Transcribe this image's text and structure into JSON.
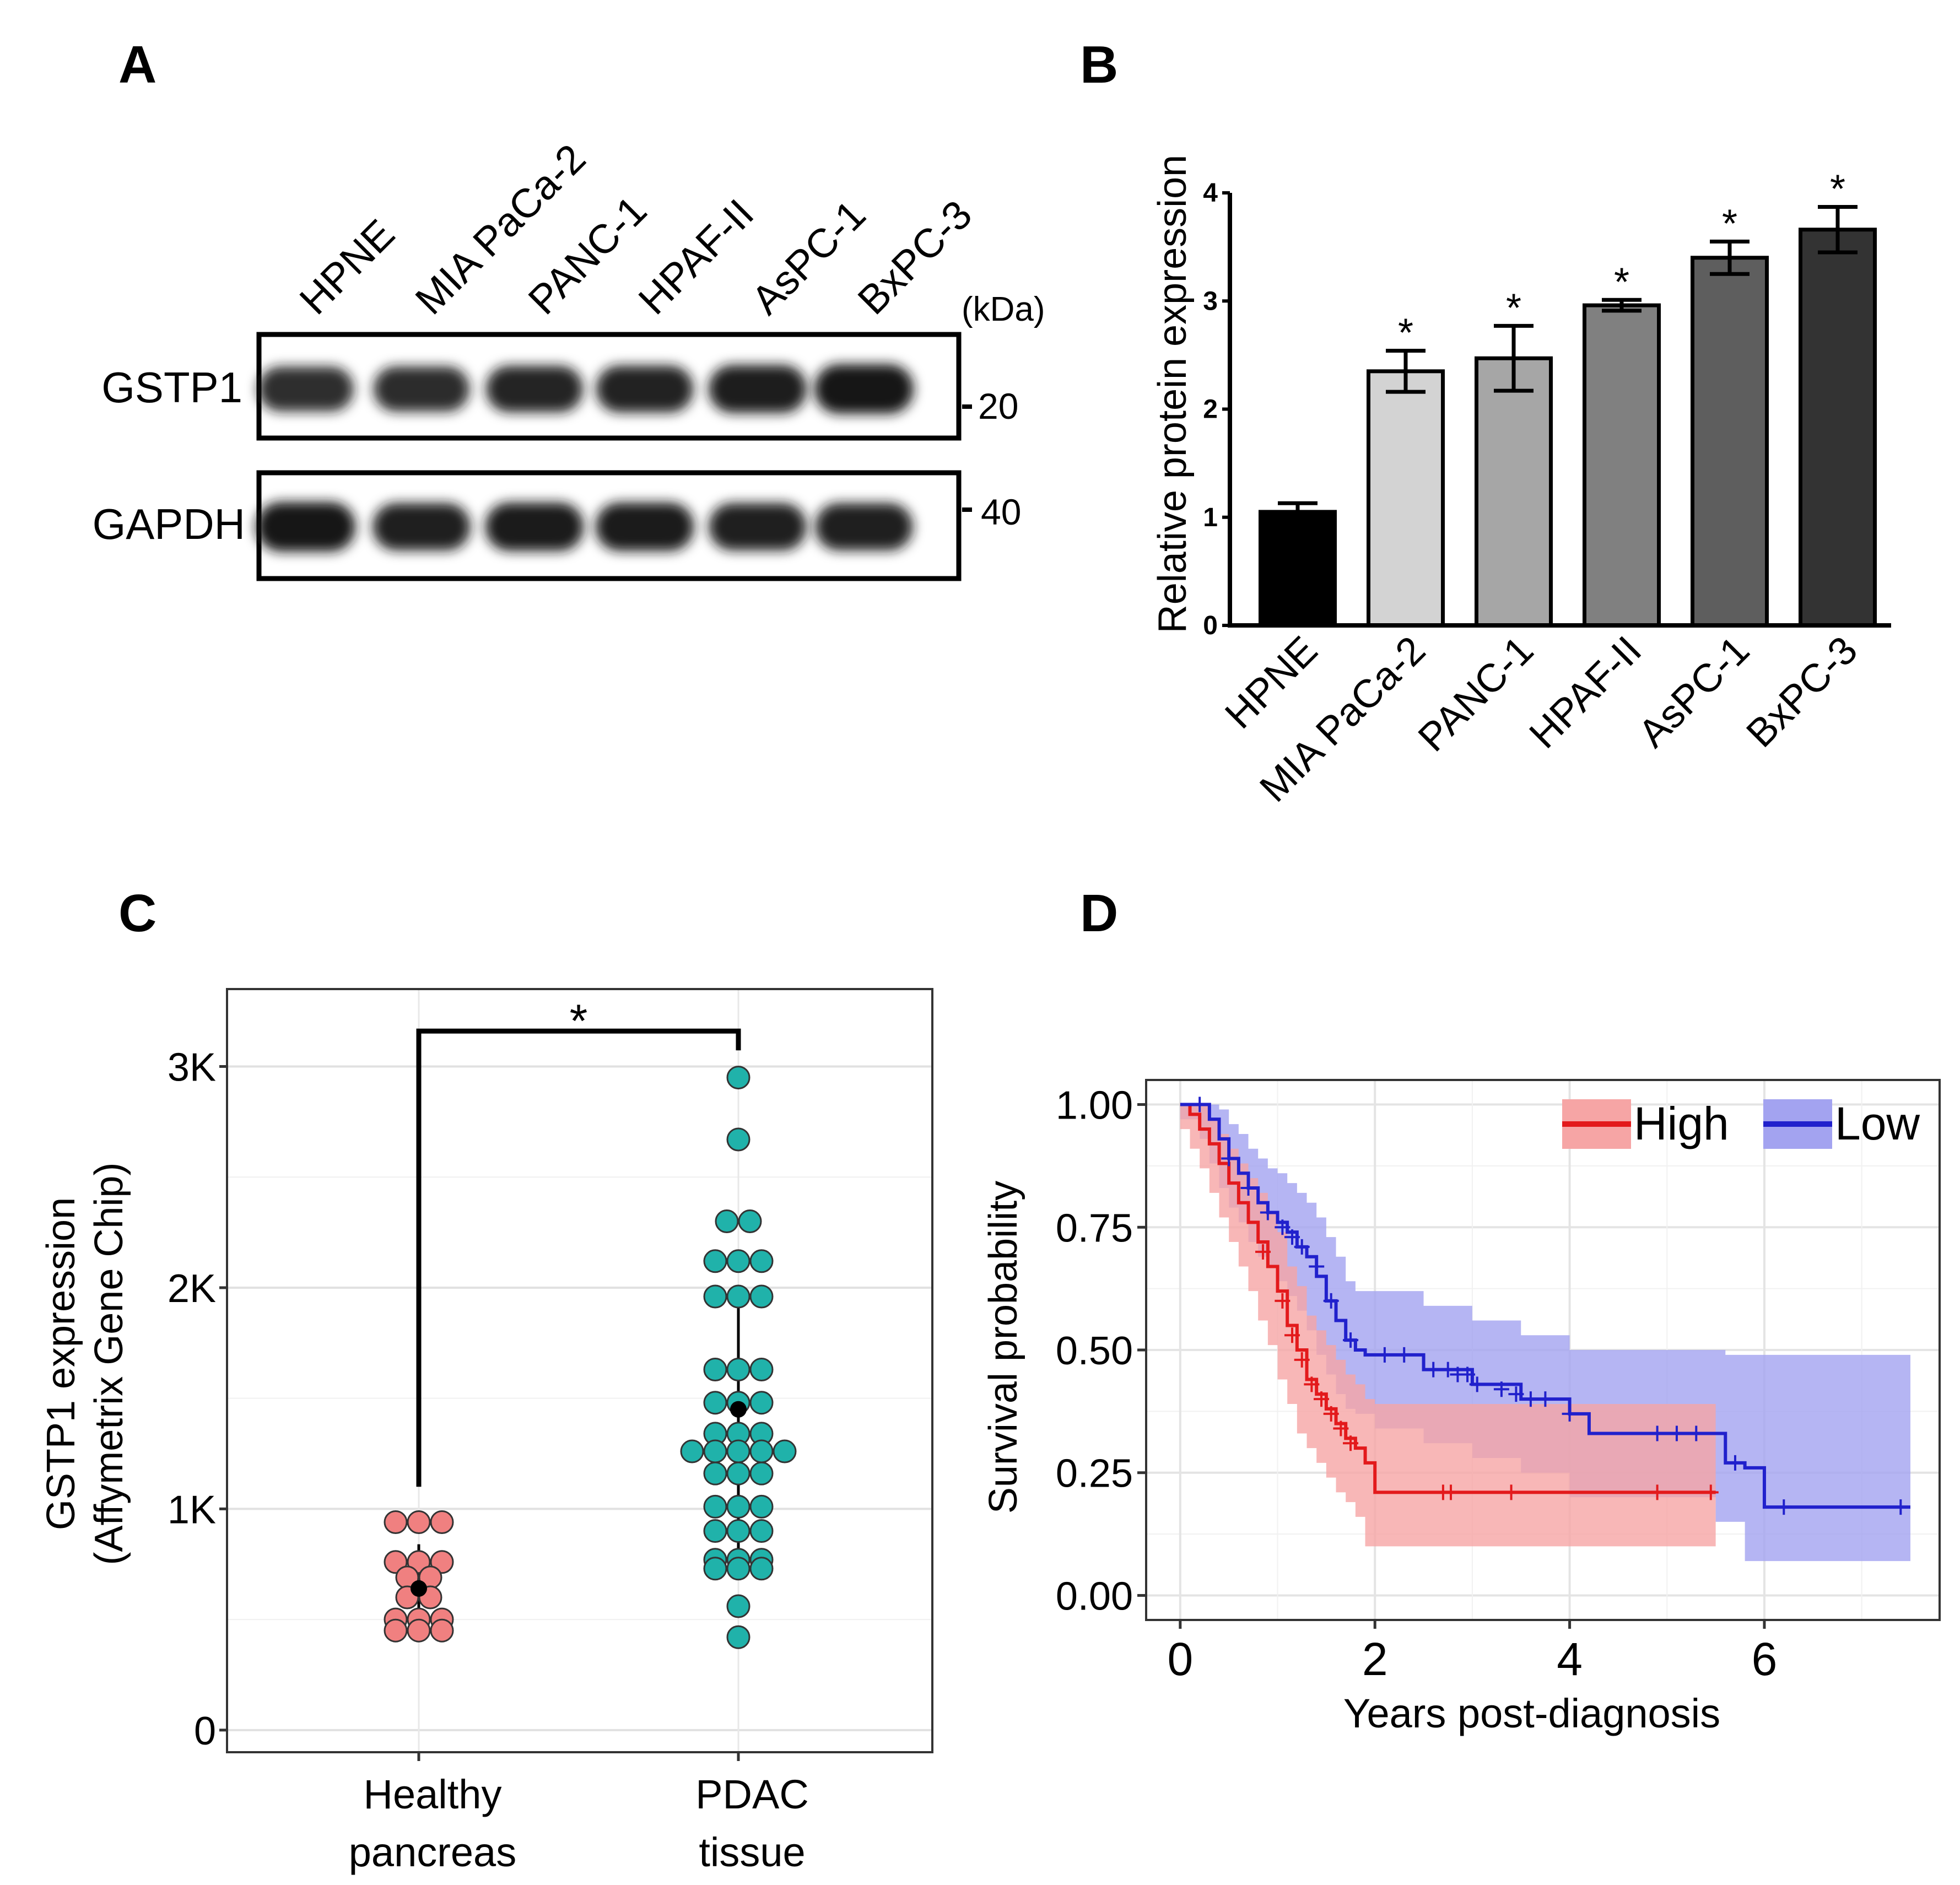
{
  "panels": {
    "a": "A",
    "b": "B",
    "c": "C",
    "d": "D"
  },
  "western_blot": {
    "lanes": [
      "HPNE",
      "MIA PaCa-2",
      "PANC-1",
      "HPAF-II",
      "AsPC-1",
      "BxPC-3"
    ],
    "unit_label": "(kDa)",
    "rows": [
      {
        "label": "GSTP1",
        "marker": "20",
        "band_intensity": [
          0.78,
          0.8,
          0.86,
          0.88,
          0.93,
          1.0
        ]
      },
      {
        "label": "GAPDH",
        "marker": "40",
        "band_intensity": [
          1.0,
          0.9,
          0.95,
          0.95,
          0.9,
          0.9
        ]
      }
    ]
  },
  "colors": {
    "bars_b": [
      "#000000",
      "#d3d3d3",
      "#a6a6a6",
      "#808080",
      "#5e5e5e",
      "#333333"
    ],
    "healthy": "#f08080",
    "pdac": "#20b2aa",
    "high": "#e31a1c",
    "high_fill": "#f6a5a5",
    "low": "#2121cc",
    "low_fill": "#a3a3f0"
  },
  "chart_data": [
    {
      "id": "B",
      "type": "bar",
      "categories": [
        "HPNE",
        "MIA PaCa-2",
        "PANC-1",
        "HPAF-II",
        "AsPC-1",
        "BxPC-3"
      ],
      "values": [
        1.05,
        2.35,
        2.47,
        2.96,
        3.4,
        3.66
      ],
      "errors": [
        0.08,
        0.19,
        0.3,
        0.05,
        0.15,
        0.21
      ],
      "significance": [
        "",
        "*",
        "*",
        "*",
        "*",
        "*"
      ],
      "ylabel": "Relative protein expression",
      "ylim": [
        0,
        4
      ],
      "yticks": [
        "0",
        "1",
        "2",
        "3",
        "4"
      ]
    },
    {
      "id": "C",
      "type": "scatter",
      "categories": [
        "Healthy pancreas",
        "PDAC tissue"
      ],
      "category_lines": [
        [
          "Healthy",
          "pancreas"
        ],
        [
          "PDAC",
          "tissue"
        ]
      ],
      "ylabel_lines": [
        "GSTP1 expression",
        "(Affymetrix Gene Chip)"
      ],
      "ylim": [
        -100,
        3350
      ],
      "yticks": [
        "0",
        "1K",
        "2K",
        "3K"
      ],
      "series": [
        {
          "name": "Healthy pancreas",
          "rows": [
            [
              940,
              3
            ],
            [
              760,
              3
            ],
            [
              690,
              2
            ],
            [
              600,
              2
            ],
            [
              500,
              3
            ],
            [
              450,
              3
            ]
          ],
          "mean": 640,
          "sd_low": 440,
          "sd_high": 840
        },
        {
          "name": "PDAC tissue",
          "rows": [
            [
              2950,
              1
            ],
            [
              2670,
              1
            ],
            [
              2300,
              2
            ],
            [
              2120,
              3
            ],
            [
              1960,
              3
            ],
            [
              1630,
              3
            ],
            [
              1480,
              3
            ],
            [
              1340,
              3
            ],
            [
              1260,
              5
            ],
            [
              1160,
              3
            ],
            [
              1010,
              3
            ],
            [
              900,
              3
            ],
            [
              770,
              3
            ],
            [
              730,
              3
            ],
            [
              560,
              1
            ],
            [
              420,
              1
            ]
          ],
          "mean": 1450,
          "sd_low": 750,
          "sd_high": 2010
        }
      ],
      "significance_label": "*",
      "bracket_y": [
        1100,
        3160
      ]
    },
    {
      "id": "D",
      "type": "line",
      "xlabel": "Years post-diagnosis",
      "ylabel": "Survival probability",
      "xlim": [
        -0.35,
        7.8
      ],
      "ylim": [
        -0.05,
        1.05
      ],
      "xticks": [
        "0",
        "2",
        "4",
        "6"
      ],
      "yticks": [
        "0.00",
        "0.25",
        "0.50",
        "0.75",
        "1.00"
      ],
      "legend_position": "top-right",
      "series": [
        {
          "name": "High",
          "x": [
            0,
            0.1,
            0.2,
            0.3,
            0.4,
            0.5,
            0.6,
            0.7,
            0.8,
            0.9,
            1.0,
            1.1,
            1.2,
            1.3,
            1.4,
            1.5,
            1.6,
            1.7,
            1.8,
            1.9,
            2.0,
            5.5
          ],
          "y": [
            1.0,
            0.98,
            0.95,
            0.92,
            0.88,
            0.84,
            0.8,
            0.76,
            0.72,
            0.67,
            0.62,
            0.55,
            0.5,
            0.44,
            0.41,
            0.38,
            0.35,
            0.32,
            0.3,
            0.27,
            0.21,
            0.21
          ],
          "lower": [
            1.0,
            0.95,
            0.91,
            0.87,
            0.82,
            0.77,
            0.72,
            0.67,
            0.62,
            0.56,
            0.51,
            0.44,
            0.39,
            0.33,
            0.3,
            0.27,
            0.24,
            0.21,
            0.19,
            0.16,
            0.1,
            0.1
          ],
          "upper": [
            1.0,
            1.0,
            1.0,
            0.97,
            0.94,
            0.91,
            0.88,
            0.85,
            0.82,
            0.78,
            0.74,
            0.67,
            0.63,
            0.57,
            0.54,
            0.51,
            0.48,
            0.45,
            0.43,
            0.4,
            0.39,
            0.39
          ],
          "censor_x": [
            0.85,
            1.05,
            1.15,
            1.25,
            1.35,
            1.45,
            1.55,
            1.65,
            1.75,
            2.7,
            2.78,
            3.4,
            4.9,
            5.45
          ],
          "censor_y": [
            0.7,
            0.6,
            0.53,
            0.48,
            0.43,
            0.4,
            0.37,
            0.34,
            0.31,
            0.21,
            0.21,
            0.21,
            0.21,
            0.21
          ]
        },
        {
          "name": "Low",
          "x": [
            0,
            0.2,
            0.3,
            0.4,
            0.5,
            0.6,
            0.7,
            0.8,
            0.9,
            1.0,
            1.1,
            1.2,
            1.3,
            1.4,
            1.5,
            1.6,
            1.7,
            1.8,
            1.9,
            2.0,
            2.5,
            3.0,
            3.5,
            4.0,
            4.2,
            5.5,
            5.6,
            5.8,
            6.0,
            7.5
          ],
          "y": [
            1.0,
            1.0,
            0.97,
            0.93,
            0.89,
            0.86,
            0.83,
            0.8,
            0.78,
            0.76,
            0.74,
            0.71,
            0.69,
            0.65,
            0.6,
            0.56,
            0.52,
            0.5,
            0.49,
            0.49,
            0.46,
            0.43,
            0.4,
            0.37,
            0.33,
            0.33,
            0.27,
            0.26,
            0.18,
            0.18
          ],
          "lower": [
            1.0,
            0.97,
            0.93,
            0.88,
            0.83,
            0.79,
            0.76,
            0.72,
            0.69,
            0.67,
            0.64,
            0.61,
            0.58,
            0.54,
            0.49,
            0.45,
            0.41,
            0.38,
            0.37,
            0.37,
            0.34,
            0.31,
            0.28,
            0.25,
            0.2,
            0.2,
            0.15,
            0.15,
            0.07,
            0.07
          ],
          "upper": [
            1.0,
            1.0,
            1.0,
            0.99,
            0.96,
            0.94,
            0.91,
            0.89,
            0.87,
            0.86,
            0.84,
            0.82,
            0.8,
            0.77,
            0.73,
            0.69,
            0.64,
            0.62,
            0.62,
            0.62,
            0.59,
            0.56,
            0.53,
            0.5,
            0.5,
            0.5,
            0.49,
            0.49,
            0.49,
            0.49
          ],
          "censor_x": [
            0.2,
            0.5,
            0.7,
            0.9,
            1.05,
            1.15,
            1.25,
            1.4,
            1.55,
            1.75,
            2.1,
            2.3,
            2.6,
            2.75,
            2.85,
            2.95,
            3.05,
            3.3,
            3.45,
            3.6,
            3.75,
            4.0,
            4.9,
            5.1,
            5.3,
            5.7,
            6.2,
            7.4
          ],
          "censor_y": [
            1.0,
            0.89,
            0.83,
            0.78,
            0.75,
            0.73,
            0.71,
            0.67,
            0.6,
            0.52,
            0.49,
            0.49,
            0.46,
            0.46,
            0.45,
            0.45,
            0.43,
            0.42,
            0.41,
            0.4,
            0.4,
            0.37,
            0.33,
            0.33,
            0.33,
            0.27,
            0.18,
            0.18
          ]
        }
      ]
    }
  ]
}
